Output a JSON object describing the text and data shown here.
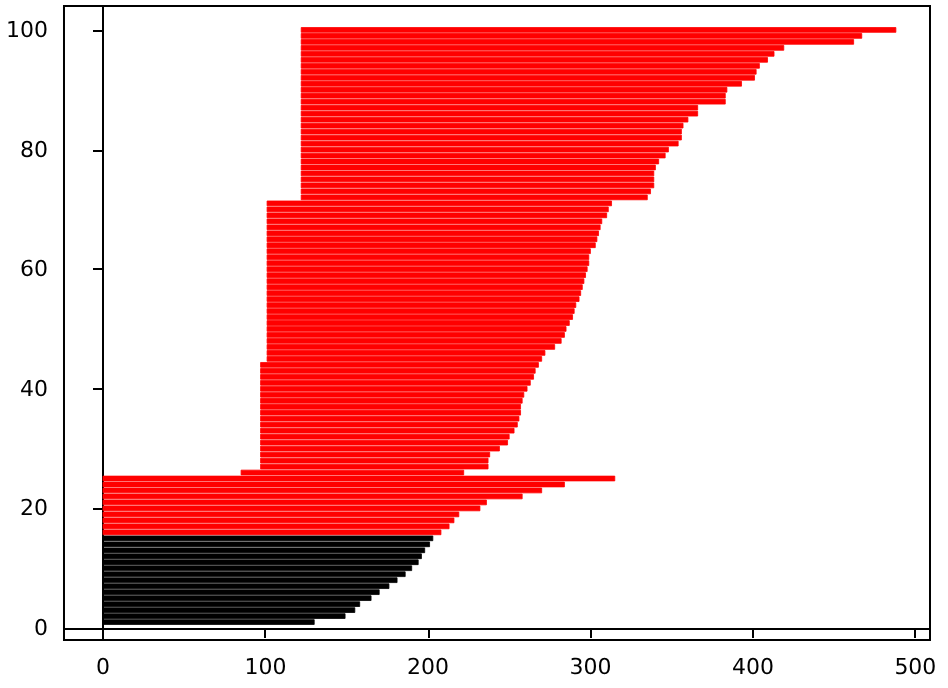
{
  "chart_data": {
    "type": "bar",
    "orientation": "horizontal",
    "series": [
      {
        "color": "#000000",
        "x": [
          1,
          2,
          3,
          4,
          5,
          6,
          7,
          8,
          9,
          10,
          11,
          12,
          13,
          14,
          15
        ],
        "base": [
          0,
          0,
          0,
          0,
          0,
          0,
          0,
          0,
          0,
          0,
          0,
          0,
          0,
          0,
          0
        ],
        "values": [
          130,
          149,
          155,
          158,
          165,
          170,
          176,
          181,
          186,
          190,
          194,
          196,
          198,
          201,
          203
        ]
      },
      {
        "color": "#ff0000",
        "x": [
          16,
          17,
          18,
          19,
          20,
          21,
          22,
          23,
          24,
          25,
          26,
          27,
          28,
          29,
          30,
          31,
          32,
          33,
          34,
          35,
          36,
          37,
          38,
          39,
          40,
          41,
          42,
          43,
          44,
          45,
          46,
          47,
          48,
          49,
          50,
          51,
          52,
          53,
          54,
          55,
          56,
          57,
          58,
          59,
          60,
          61,
          62,
          63,
          64,
          65,
          66,
          67,
          68,
          69,
          70,
          71,
          72,
          73,
          74,
          75,
          76,
          77,
          78,
          79,
          80,
          81,
          82,
          83,
          84,
          85,
          86,
          87,
          88,
          89,
          90,
          91,
          92,
          93,
          94,
          95,
          96,
          97,
          98,
          99,
          100
        ],
        "base": [
          0,
          0,
          0,
          0,
          0,
          0,
          0,
          0,
          0,
          0,
          85,
          97,
          97,
          97,
          97,
          97,
          97,
          97,
          97,
          97,
          97,
          97,
          97,
          97,
          97,
          97,
          97,
          97,
          97,
          101,
          101,
          101,
          101,
          101,
          101,
          101,
          101,
          101,
          101,
          101,
          101,
          101,
          101,
          101,
          101,
          101,
          101,
          101,
          101,
          101,
          101,
          101,
          101,
          101,
          101,
          101,
          122,
          122,
          122,
          122,
          122,
          122,
          122,
          122,
          122,
          122,
          122,
          122,
          122,
          122,
          122,
          122,
          122,
          122,
          122,
          122,
          122,
          122,
          122,
          122,
          122,
          122,
          122,
          122,
          122
        ],
        "values": [
          208,
          213,
          216,
          219,
          232,
          236,
          258,
          270,
          284,
          315,
          137,
          140,
          140,
          141,
          147,
          152,
          153,
          156,
          158,
          159,
          160,
          160,
          161,
          162,
          164,
          166,
          168,
          169,
          171,
          169,
          171,
          177,
          181,
          183,
          184,
          186,
          188,
          189,
          190,
          192,
          193,
          194,
          195,
          196,
          197,
          198,
          198,
          199,
          202,
          203,
          204,
          205,
          206,
          209,
          210,
          212,
          213,
          215,
          217,
          217,
          217,
          218,
          220,
          224,
          226,
          232,
          234,
          234,
          235,
          238,
          244,
          244,
          261,
          261,
          262,
          271,
          279,
          280,
          282,
          287,
          291,
          297,
          340,
          345,
          366
        ]
      }
    ],
    "xlim": [
      -24,
      509
    ],
    "xticks": [
      0,
      100,
      200,
      300,
      400,
      500
    ],
    "ylim": [
      -2,
      104
    ],
    "yticks": [
      0,
      20,
      40,
      60,
      80,
      100
    ]
  }
}
